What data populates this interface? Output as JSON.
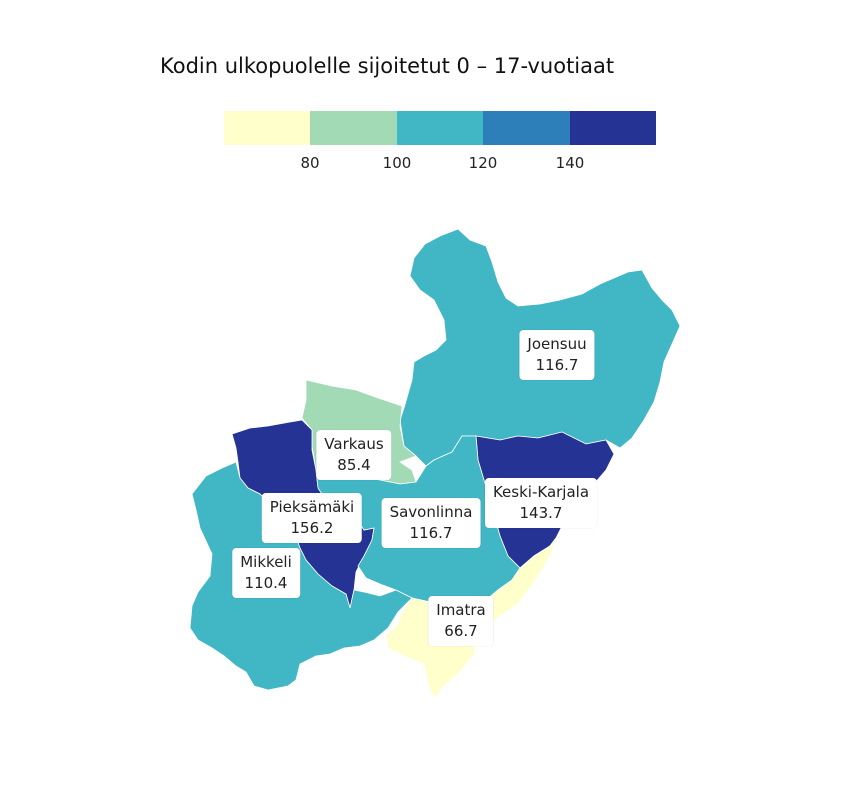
{
  "title": "Kodin ulkopuolelle sijoitetut 0 – 17-vuotiaat",
  "legend": {
    "colors": [
      "#ffffcc",
      "#a1dab4",
      "#41b6c4",
      "#2c7fb8",
      "#253494"
    ],
    "ticks": [
      "80",
      "100",
      "120",
      "140"
    ]
  },
  "regions": [
    {
      "name": "Joensuu",
      "value": "116.7",
      "color": "#41b6c4"
    },
    {
      "name": "Varkaus",
      "value": "85.4",
      "color": "#a1dab4"
    },
    {
      "name": "Pieksämäki",
      "value": "156.2",
      "color": "#253494"
    },
    {
      "name": "Savonlinna",
      "value": "116.7",
      "color": "#41b6c4"
    },
    {
      "name": "Keski-Karjala",
      "value": "143.7",
      "color": "#253494"
    },
    {
      "name": "Mikkeli",
      "value": "110.4",
      "color": "#41b6c4"
    },
    {
      "name": "Imatra",
      "value": "66.7",
      "color": "#ffffcc"
    }
  ]
}
